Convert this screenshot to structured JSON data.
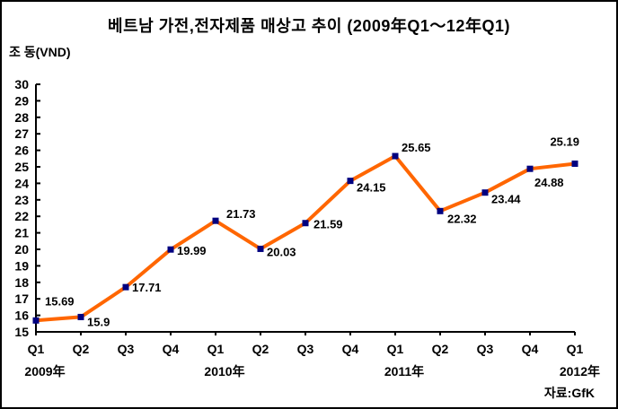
{
  "chart_data": {
    "type": "line",
    "title": "베트남 가전,전자제품 매상고 추이 (2009年Q1～12年Q1)",
    "ylabel": "조 동(VND)",
    "source": "자료:GfK",
    "categories": [
      "Q1",
      "Q2",
      "Q3",
      "Q4",
      "Q1",
      "Q2",
      "Q3",
      "Q4",
      "Q1",
      "Q2",
      "Q3",
      "Q4",
      "Q1"
    ],
    "year_labels": [
      {
        "label": "2009年",
        "index": 0
      },
      {
        "label": "2010年",
        "index": 4
      },
      {
        "label": "2011年",
        "index": 8
      },
      {
        "label": "2012年",
        "index": 12
      }
    ],
    "values": [
      15.69,
      15.9,
      17.71,
      19.99,
      21.73,
      20.03,
      21.59,
      24.15,
      25.65,
      22.32,
      23.44,
      24.88,
      25.19
    ],
    "ylim": [
      15,
      30
    ],
    "y_tick_step": 1,
    "grid": false,
    "legend": "none",
    "background_color": "#FFFFFF",
    "line_color": "#FF6600",
    "marker_color": "#000080",
    "text_color": "#000000",
    "label_offsets": [
      [
        10,
        -17,
        "start"
      ],
      [
        7,
        10,
        "start"
      ],
      [
        7,
        5,
        "start"
      ],
      [
        7,
        6,
        "start"
      ],
      [
        12,
        -3,
        "start"
      ],
      [
        7,
        8,
        "start"
      ],
      [
        9,
        6,
        "start"
      ],
      [
        7,
        12,
        "start"
      ],
      [
        7,
        -5,
        "start"
      ],
      [
        8,
        13,
        "start"
      ],
      [
        7,
        12,
        "start"
      ],
      [
        5,
        20,
        "start"
      ],
      [
        5,
        -20,
        "end"
      ]
    ]
  }
}
